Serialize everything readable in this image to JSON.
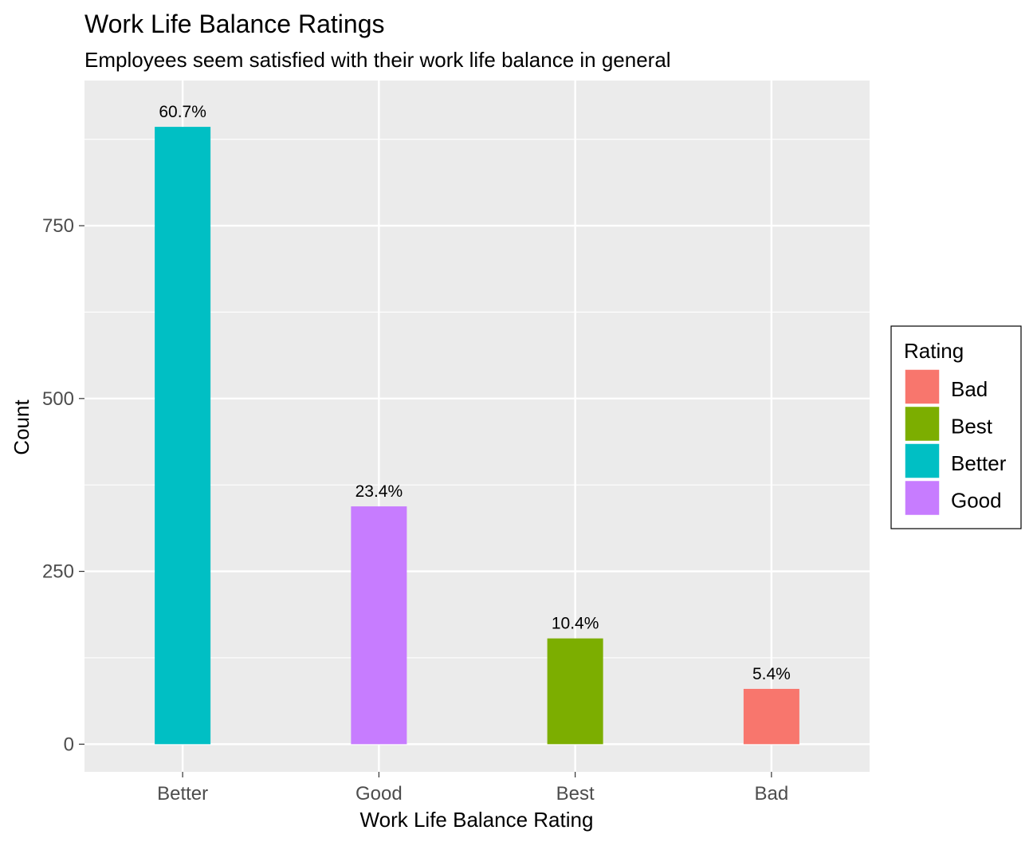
{
  "chart_data": {
    "type": "bar",
    "title": "Work Life Balance Ratings",
    "subtitle": "Employees seem satisfied with their work life balance in general",
    "xlabel": "Work Life Balance Rating",
    "ylabel": "Count",
    "categories": [
      "Better",
      "Good",
      "Best",
      "Bad"
    ],
    "values": [
      893,
      344,
      153,
      80
    ],
    "data_labels": [
      "60.7%",
      "23.4%",
      "10.4%",
      "5.4%"
    ],
    "y_ticks": [
      0,
      250,
      500,
      750
    ],
    "y_tick_labels": [
      "0",
      "250",
      "500",
      "750"
    ],
    "ylim": [
      -40,
      960
    ],
    "grid": true,
    "legend": {
      "title": "Rating",
      "placement": "right",
      "entries": [
        {
          "label": "Bad",
          "color": "#F8766D"
        },
        {
          "label": "Best",
          "color": "#7CAE00"
        },
        {
          "label": "Better",
          "color": "#00BFC4"
        },
        {
          "label": "Good",
          "color": "#C77CFF"
        }
      ]
    },
    "colors": {
      "Better": "#00BFC4",
      "Good": "#C77CFF",
      "Best": "#7CAE00",
      "Bad": "#F8766D"
    },
    "panel_background": "#EBEBEB",
    "grid_color": "#FFFFFF"
  }
}
